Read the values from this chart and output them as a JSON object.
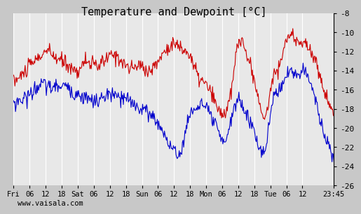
{
  "title": "Temperature and Dewpoint [°C]",
  "title_fontsize": 11,
  "bg_color": "#c8c8c8",
  "plot_bg_color": "#e8e8e8",
  "grid_color": "#ffffff",
  "red_color": "#cc0000",
  "blue_color": "#0000cc",
  "ylim": [
    -26,
    -8
  ],
  "yticks": [
    -26,
    -24,
    -22,
    -20,
    -18,
    -16,
    -14,
    -12,
    -10,
    -8
  ],
  "xlabel_bottom": "Fri  06   12   18  Sat  06   12   18  Sun  06   12   18  Mon  06   12   18  Tue  06   12    23:45",
  "watermark": "www.vaisala.com",
  "line_width": 0.8,
  "n_points": 500
}
